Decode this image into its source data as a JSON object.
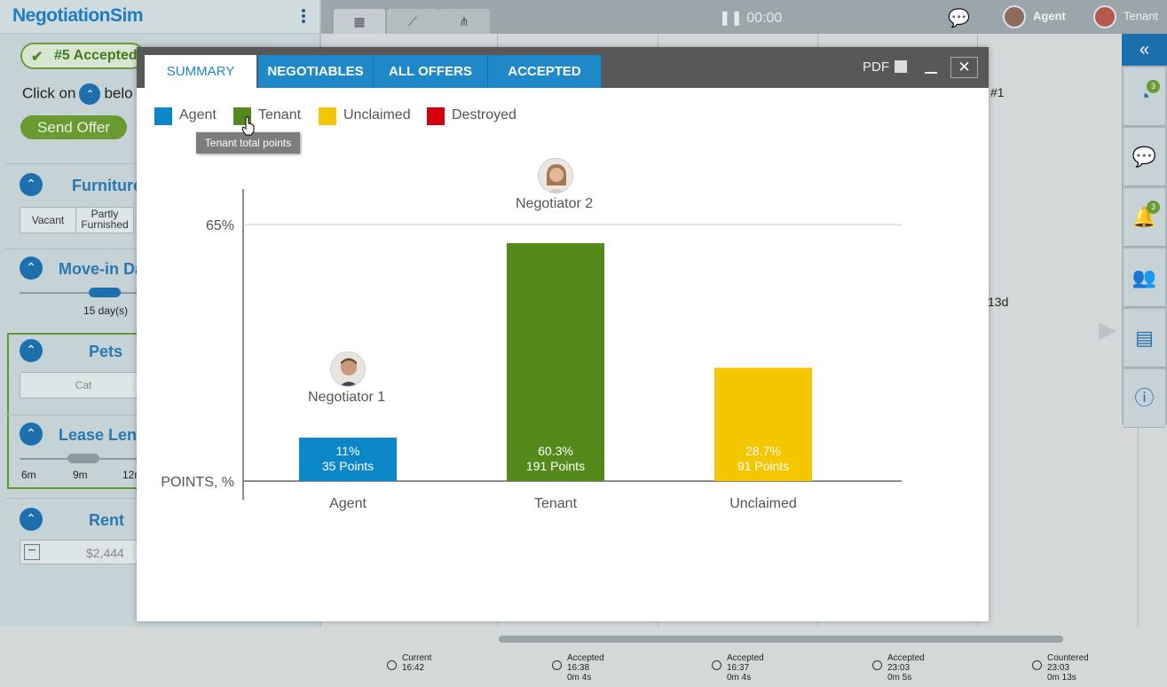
{
  "app": {
    "logo_text": "NegotiationSim"
  },
  "left": {
    "accepted_badge": "#5 Accepted",
    "instruction_prefix": "Click on",
    "instruction_suffix": "belo",
    "send_offer": "Send Offer",
    "sections": {
      "furniture": {
        "title": "Furniture",
        "options": [
          "Vacant",
          "Partly Furnished"
        ]
      },
      "movein": {
        "title": "Move-in Da",
        "value": "15 day(s)"
      },
      "pets": {
        "title": "Pets",
        "value": "Cat"
      },
      "lease": {
        "title": "Lease Leng",
        "ticks": [
          "6m",
          "9m",
          "12m"
        ]
      },
      "rent": {
        "title": "Rent",
        "value": "$2,444"
      }
    }
  },
  "topbar": {
    "timer": "00:00",
    "agent": "Agent",
    "tenant": "Tenant"
  },
  "rsidebar": {
    "badge_clock": "3",
    "badge_bell": "3"
  },
  "background": {
    "offer_ref": "#1",
    "duration": "13d"
  },
  "timeline": [
    {
      "status": "Current",
      "time": "16:42",
      "dur": ""
    },
    {
      "status": "Accepted",
      "time": "16:38",
      "dur": "0m 4s"
    },
    {
      "status": "Accepted",
      "time": "16:37",
      "dur": "0m 4s"
    },
    {
      "status": "Accepted",
      "time": "23:03",
      "dur": "0m 5s"
    },
    {
      "status": "Countered",
      "time": "23:03",
      "dur": "0m 13s"
    }
  ],
  "modal": {
    "tabs": [
      "SUMMARY",
      "NEGOTIABLES",
      "ALL OFFERS",
      "ACCEPTED"
    ],
    "pdf_label": "PDF",
    "close_label": "✕",
    "legend": [
      {
        "label": "Agent",
        "color": "#0b86c7"
      },
      {
        "label": "Tenant",
        "color": "#538a1b"
      },
      {
        "label": "Unclaimed",
        "color": "#f3c600"
      },
      {
        "label": "Destroyed",
        "color": "#d4000e"
      }
    ],
    "tooltip": "Tenant total points",
    "negotiator1": "Negotiator 1",
    "negotiator2": "Negotiator 2"
  },
  "chart_data": {
    "type": "bar",
    "categories": [
      "Agent",
      "Tenant",
      "Unclaimed"
    ],
    "values": [
      11,
      60.3,
      28.7
    ],
    "points": [
      35,
      191,
      91
    ],
    "value_labels": [
      "11%",
      "60.3%",
      "28.7%"
    ],
    "point_labels": [
      "35 Points",
      "191 Points",
      "91 Points"
    ],
    "colors": [
      "#0b86c7",
      "#538a1b",
      "#f3c600"
    ],
    "ylabel": "POINTS, %",
    "ytick_label": "65%",
    "ytick_value": 65,
    "ylim": [
      0,
      65
    ]
  }
}
